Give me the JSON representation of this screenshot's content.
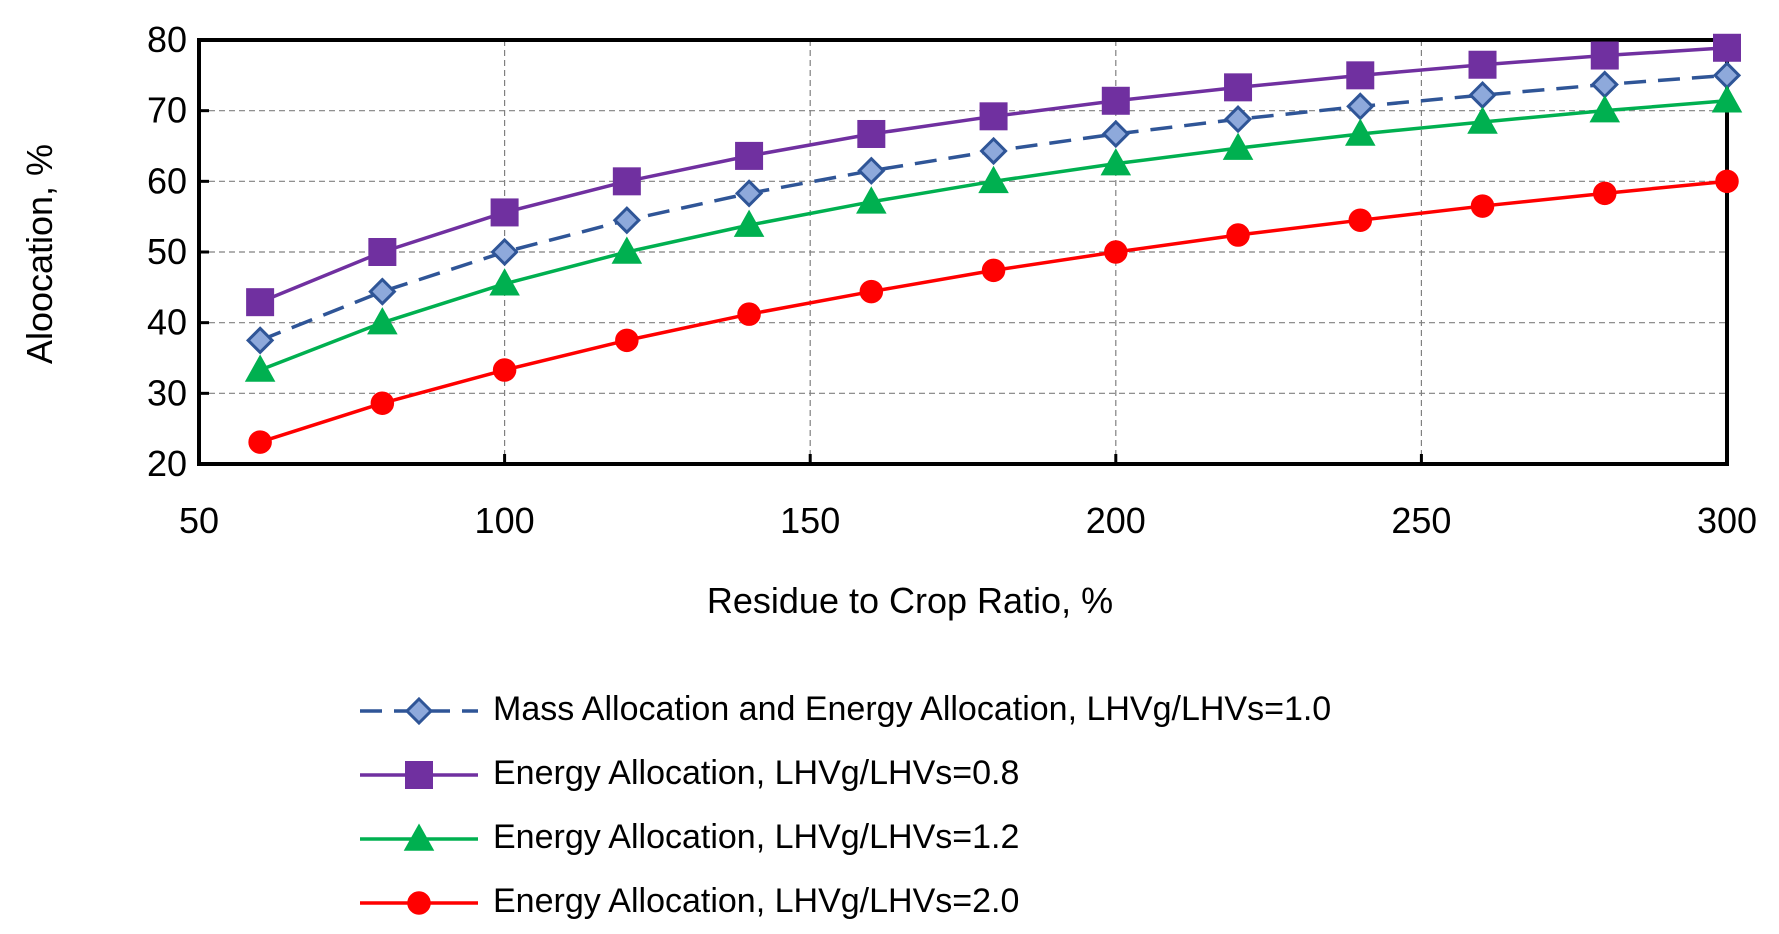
{
  "chart_data": {
    "type": "line",
    "title": "",
    "xlabel": "Residue to Crop Ratio, %",
    "ylabel": "Aloocation, %",
    "xlim": [
      50,
      300
    ],
    "ylim": [
      20,
      80
    ],
    "xticks": [
      50,
      100,
      150,
      200,
      250,
      300
    ],
    "yticks": [
      20,
      30,
      40,
      50,
      60,
      70,
      80
    ],
    "grid": true,
    "legend_position": "bottom",
    "x": [
      60,
      80,
      100,
      120,
      140,
      160,
      180,
      200,
      220,
      240,
      260,
      280,
      300
    ],
    "series": [
      {
        "name": "Mass Allocation and Energy Allocation, LHVg/LHVs=1.0",
        "color": "#2F5597",
        "fill": "#8EA9DB",
        "marker": "diamond",
        "dash": true,
        "values": [
          37.5,
          44.4,
          50.0,
          54.5,
          58.3,
          61.5,
          64.3,
          66.7,
          68.8,
          70.6,
          72.2,
          73.7,
          75.0
        ]
      },
      {
        "name": "Energy Allocation, LHVg/LHVs=0.8",
        "color": "#7030A0",
        "fill": "#7030A0",
        "marker": "square",
        "dash": false,
        "values": [
          42.9,
          50.0,
          55.6,
          60.0,
          63.6,
          66.7,
          69.2,
          71.4,
          73.3,
          75.0,
          76.5,
          77.8,
          78.9
        ]
      },
      {
        "name": "Energy Allocation, LHVg/LHVs=1.2",
        "color": "#00B050",
        "fill": "#00B050",
        "marker": "triangle",
        "dash": false,
        "values": [
          33.3,
          40.0,
          45.5,
          50.0,
          53.8,
          57.1,
          60.0,
          62.5,
          64.7,
          66.7,
          68.4,
          70.0,
          71.4
        ]
      },
      {
        "name": "Energy Allocation, LHVg/LHVs=2.0",
        "color": "#FF0000",
        "fill": "#FF0000",
        "marker": "circle",
        "dash": false,
        "values": [
          23.1,
          28.6,
          33.3,
          37.5,
          41.2,
          44.4,
          47.4,
          50.0,
          52.4,
          54.5,
          56.5,
          58.3,
          60.0
        ]
      }
    ]
  }
}
